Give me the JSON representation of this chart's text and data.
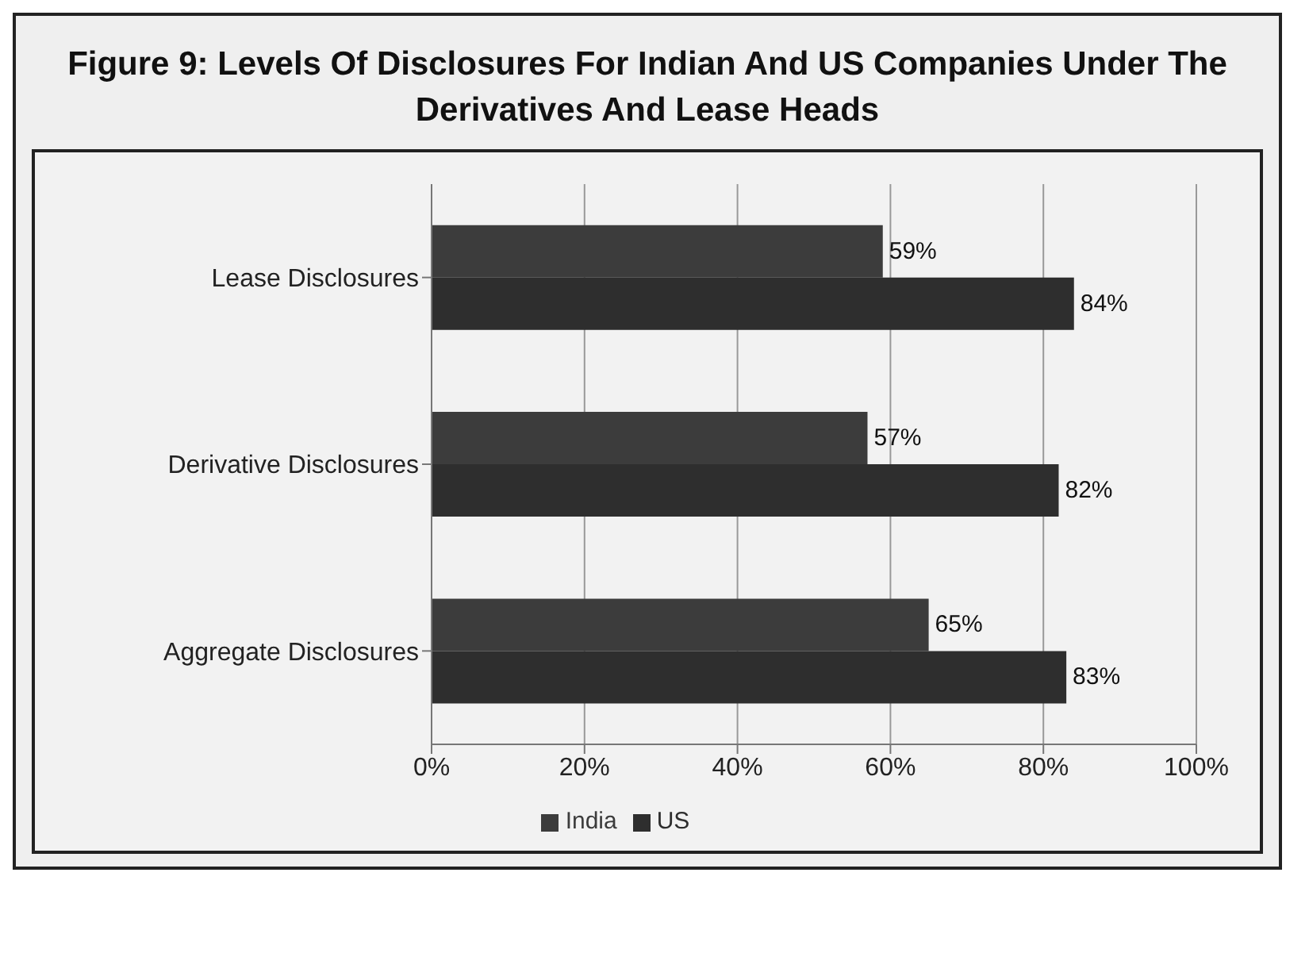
{
  "chart_data": {
    "type": "bar",
    "orientation": "horizontal",
    "title": "Figure 9: Levels Of Disclosures For Indian And US Companies Under The Derivatives And Lease Heads",
    "categories": [
      "Lease Disclosures",
      "Derivative Disclosures",
      "Aggregate Disclosures"
    ],
    "series": [
      {
        "name": "India",
        "color": "#3c3c3c",
        "values": [
          59,
          57,
          65
        ],
        "value_labels": [
          "59%",
          "57%",
          "65%"
        ]
      },
      {
        "name": "US",
        "color": "#2e2e2e",
        "values": [
          84,
          82,
          83
        ],
        "value_labels": [
          "84%",
          "82%",
          "83%"
        ]
      }
    ],
    "xlim": [
      0,
      100
    ],
    "xticks": [
      {
        "value": 0,
        "label": "0%"
      },
      {
        "value": 20,
        "label": "20%"
      },
      {
        "value": 40,
        "label": "40%"
      },
      {
        "value": 60,
        "label": "60%"
      },
      {
        "value": 80,
        "label": "80%"
      },
      {
        "value": 100,
        "label": "100%"
      }
    ],
    "grid": "x",
    "legend": "bottom"
  }
}
